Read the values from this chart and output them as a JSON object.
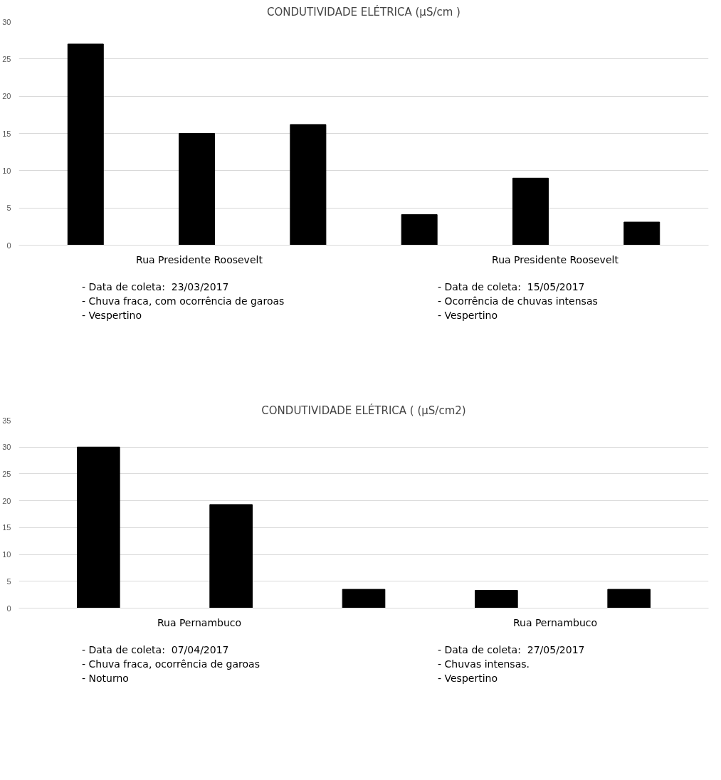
{
  "chart_data": [
    {
      "type": "bar",
      "title": "CONDUTIVIDADE ELÉTRICA (µS/cm )",
      "categories": [
        null,
        null,
        null,
        null,
        null,
        null
      ],
      "values": [
        27,
        15,
        16.2,
        4.1,
        9,
        3.1
      ],
      "color": "#000000",
      "ylim": [
        0,
        30
      ],
      "yticks": [
        0,
        5,
        10,
        15,
        20,
        25,
        30
      ],
      "grid": "y",
      "tick_labels": "y",
      "annotations": [
        "Rua Presidente Roosevelt",
        "- Data de coleta:  23/03/2017",
        "- Chuva fraca, com ocorrência de garoas",
        "- Vespertino",
        "Rua Presidente Roosevelt",
        "- Data de coleta:  15/05/2017",
        "- Ocorrência de chuvas intensas",
        "- Vespertino"
      ]
    },
    {
      "type": "bar",
      "title": "CONDUTIVIDADE ELÉTRICA ( (µS/cm2)",
      "categories": [
        null,
        null,
        null,
        null,
        null
      ],
      "values": [
        30,
        19.3,
        3.5,
        3.3,
        3.5
      ],
      "color": "#000000",
      "ylim": [
        0,
        35
      ],
      "yticks": [
        0,
        5,
        10,
        15,
        20,
        25,
        30,
        35
      ],
      "grid": "y",
      "tick_labels": "y",
      "annotations": [
        "Rua Pernambuco",
        "- Data de coleta:  07/04/2017",
        "- Chuva fraca, ocorrência de garoas",
        "- Noturno",
        "Rua Pernambuco",
        "- Data de coleta:  27/05/2017",
        "- Chuvas intensas.",
        "- Vespertino"
      ]
    }
  ]
}
